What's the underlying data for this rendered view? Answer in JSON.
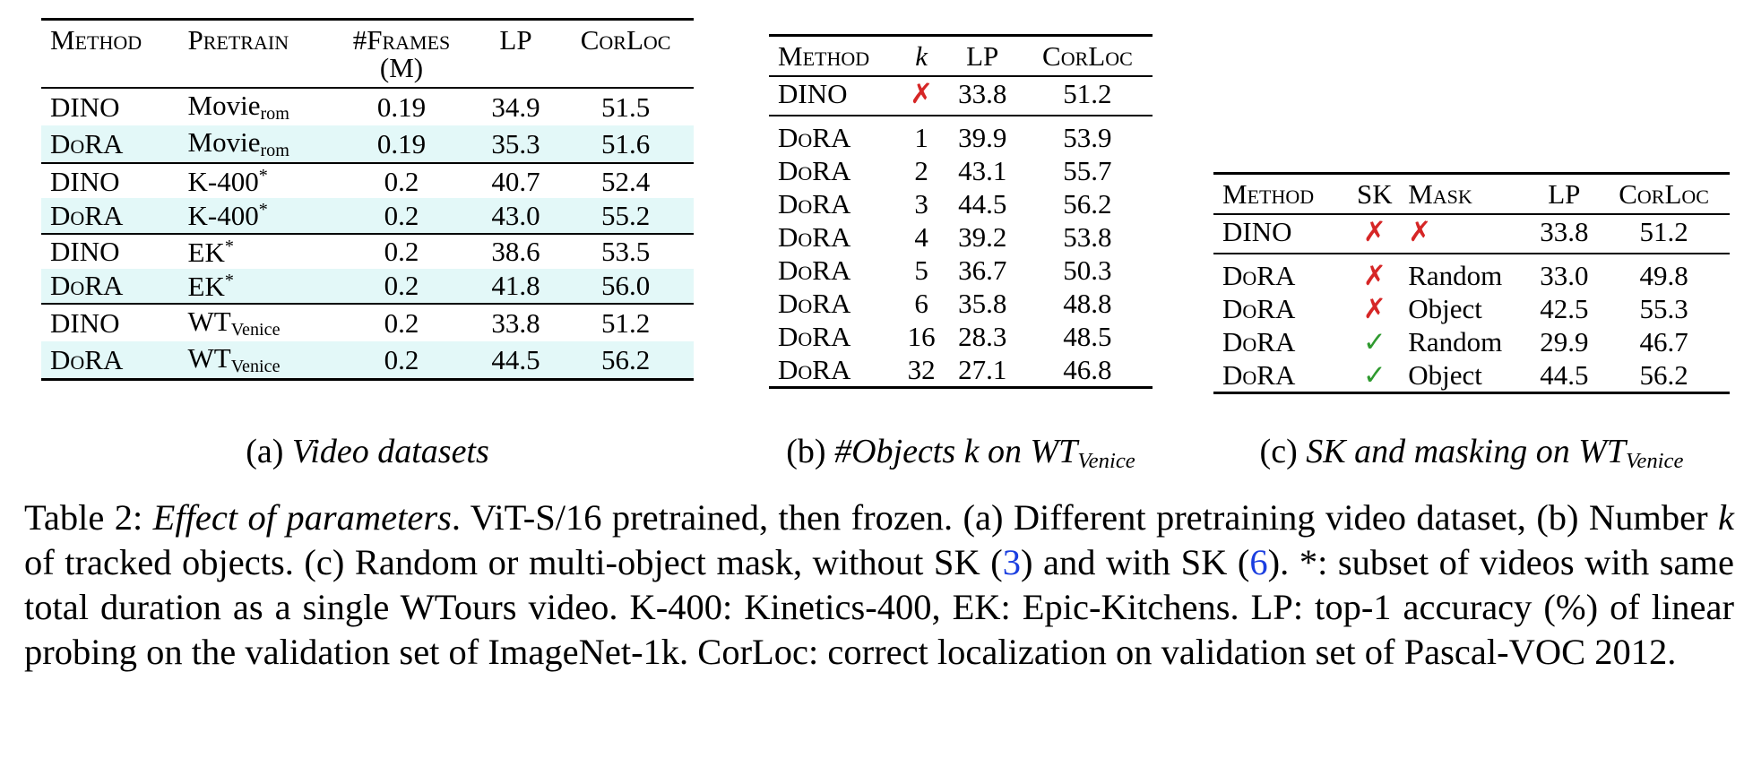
{
  "tables": {
    "a": {
      "headers": [
        "Method",
        "Pretrain",
        "#Frames",
        "LP",
        "CorLoc"
      ],
      "frames_unit": "(M)",
      "rows": [
        {
          "method": "DINO",
          "pretrain_base": "Movie",
          "pretrain_sub": "rom",
          "pretrain_sup": "",
          "frames": "0.19",
          "lp": "34.9",
          "corloc": "51.5",
          "bold": false
        },
        {
          "method": "DoRA",
          "pretrain_base": "Movie",
          "pretrain_sub": "rom",
          "pretrain_sup": "",
          "frames": "0.19",
          "lp": "35.3",
          "corloc": "51.6",
          "bold": true
        },
        {
          "method": "DINO",
          "pretrain_base": "K-400",
          "pretrain_sub": "",
          "pretrain_sup": "*",
          "frames": "0.2",
          "lp": "40.7",
          "corloc": "52.4",
          "bold": false
        },
        {
          "method": "DoRA",
          "pretrain_base": "K-400",
          "pretrain_sub": "",
          "pretrain_sup": "*",
          "frames": "0.2",
          "lp": "43.0",
          "corloc": "55.2",
          "bold": true
        },
        {
          "method": "DINO",
          "pretrain_base": "EK",
          "pretrain_sub": "",
          "pretrain_sup": "*",
          "frames": "0.2",
          "lp": "38.6",
          "corloc": "53.5",
          "bold": false
        },
        {
          "method": "DoRA",
          "pretrain_base": "EK",
          "pretrain_sub": "",
          "pretrain_sup": "*",
          "frames": "0.2",
          "lp": "41.8",
          "corloc": "56.0",
          "bold": true
        },
        {
          "method": "DINO",
          "pretrain_base": "WT",
          "pretrain_sub": "Venice",
          "pretrain_sup": "",
          "frames": "0.2",
          "lp": "33.8",
          "corloc": "51.2",
          "bold": false
        },
        {
          "method": "DoRA",
          "pretrain_base": "WT",
          "pretrain_sub": "Venice",
          "pretrain_sup": "",
          "frames": "0.2",
          "lp": "44.5",
          "corloc": "56.2",
          "bold": true
        }
      ],
      "caption_label": "(a)",
      "caption_text": "Video datasets"
    },
    "b": {
      "headers": [
        "Method",
        "k",
        "LP",
        "CorLoc"
      ],
      "rows": [
        {
          "method": "DINO",
          "k": "✗",
          "lp": "33.8",
          "corloc": "51.2",
          "bold": false
        },
        {
          "method": "DoRA",
          "k": "1",
          "lp": "39.9",
          "corloc": "53.9",
          "bold": false
        },
        {
          "method": "DoRA",
          "k": "2",
          "lp": "43.1",
          "corloc": "55.7",
          "bold": false
        },
        {
          "method": "DoRA",
          "k": "3",
          "lp": "44.5",
          "corloc": "56.2",
          "bold": true
        },
        {
          "method": "DoRA",
          "k": "4",
          "lp": "39.2",
          "corloc": "53.8",
          "bold": false
        },
        {
          "method": "DoRA",
          "k": "5",
          "lp": "36.7",
          "corloc": "50.3",
          "bold": false
        },
        {
          "method": "DoRA",
          "k": "6",
          "lp": "35.8",
          "corloc": "48.8",
          "bold": false
        },
        {
          "method": "DoRA",
          "k": "16",
          "lp": "28.3",
          "corloc": "48.5",
          "bold": false
        },
        {
          "method": "DoRA",
          "k": "32",
          "lp": "27.1",
          "corloc": "46.8",
          "bold": false
        }
      ],
      "caption_label": "(b)",
      "caption_text": "#Objects k on WT",
      "caption_sub": "Venice"
    },
    "c": {
      "headers": [
        "Method",
        "SK",
        "Mask",
        "LP",
        "CorLoc"
      ],
      "rows": [
        {
          "method": "DINO",
          "sk": "✗",
          "mask": "✗",
          "lp": "33.8",
          "corloc": "51.2",
          "bold": false
        },
        {
          "method": "DoRA",
          "sk": "✗",
          "mask": "Random",
          "lp": "33.0",
          "corloc": "49.8",
          "bold": false
        },
        {
          "method": "DoRA",
          "sk": "✗",
          "mask": "Object",
          "lp": "42.5",
          "corloc": "55.3",
          "bold": false
        },
        {
          "method": "DoRA",
          "sk": "✓",
          "mask": "Random",
          "lp": "29.9",
          "corloc": "46.7",
          "bold": false
        },
        {
          "method": "DoRA",
          "sk": "✓",
          "mask": "Object",
          "lp": "44.5",
          "corloc": "56.2",
          "bold": true
        }
      ],
      "caption_label": "(c)",
      "caption_text": "SK and masking on WT",
      "caption_sub": "Venice"
    }
  },
  "caption": {
    "label": "Table 2:",
    "title": "Effect of parameters",
    "t1": ". ViT-S/16 pretrained, then frozen. (a) Different pretraining video dataset, (b) Number ",
    "k": "k",
    "t2": " of tracked objects. (c) Random or multi-object mask, without SK (",
    "ref1": "3",
    "t3": ") and with SK (",
    "ref2": "6",
    "t4": "). *: subset of videos with same total duration as a single WTours video. K-400: Kinetics-400, EK: Epic-Kitchens. LP: top-1 accuracy (%) of linear probing on the validation set of ImageNet-1k. CorLoc: correct localization on validation set of Pascal-VOC 2012."
  }
}
